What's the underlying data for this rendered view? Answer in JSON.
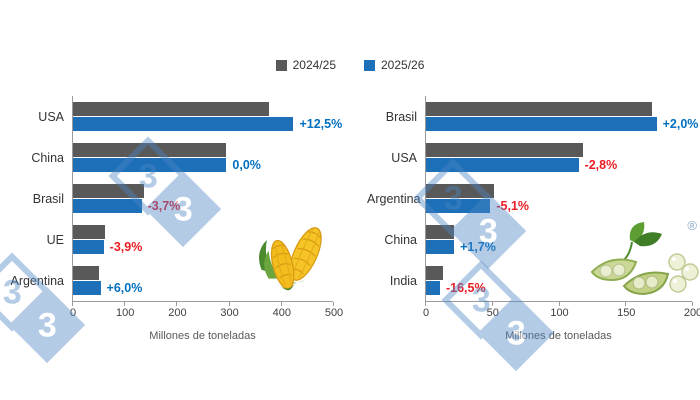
{
  "legend": [
    {
      "label": "2024/25",
      "color": "#595959"
    },
    {
      "label": "2025/26",
      "color": "#1d70b8"
    }
  ],
  "brand": {
    "watermark_digit": "3",
    "registered": "®"
  },
  "percent_colors": {
    "positive": "#0070c0",
    "negative": "#eb1c24"
  },
  "chart_data": [
    {
      "type": "bar",
      "orientation": "horizontal",
      "title": "Corn production",
      "categories": [
        "USA",
        "China",
        "Brasil",
        "UE",
        "Argentina"
      ],
      "series": [
        {
          "name": "2024/25",
          "values": [
            377,
            295,
            137,
            61,
            50
          ]
        },
        {
          "name": "2025/26",
          "values": [
            424,
            295,
            132,
            59,
            53
          ]
        }
      ],
      "labels": [
        "+12,5%",
        "0,0%",
        "-3,7%",
        "-3,9%",
        "+6,0%"
      ],
      "label_colors": [
        "#0070c0",
        "#0070c0",
        "#eb1c24",
        "#eb1c24",
        "#0070c0"
      ],
      "xlabel": "Millones de toneladas",
      "xlim": [
        0,
        500
      ],
      "xticks": [
        0,
        100,
        200,
        300,
        400,
        500
      ],
      "legend_position": "top",
      "grid": false
    },
    {
      "type": "bar",
      "orientation": "horizontal",
      "title": "Soybean production",
      "categories": [
        "Brasil",
        "USA",
        "Argentina",
        "China",
        "India"
      ],
      "series": [
        {
          "name": "2024/25",
          "values": [
            170,
            118,
            51,
            20.7,
            12.6
          ]
        },
        {
          "name": "2025/26",
          "values": [
            173.4,
            114.7,
            48.4,
            21.1,
            10.5
          ]
        }
      ],
      "labels": [
        "+2,0%",
        "-2,8%",
        "-5,1%",
        "+1,7%",
        "-16,5%"
      ],
      "label_colors": [
        "#0070c0",
        "#eb1c24",
        "#eb1c24",
        "#0070c0",
        "#eb1c24"
      ],
      "xlabel": "Millones de toneladas",
      "xlim": [
        0,
        200
      ],
      "xticks": [
        0,
        50,
        100,
        150,
        200
      ],
      "legend_position": "top",
      "grid": false
    }
  ]
}
